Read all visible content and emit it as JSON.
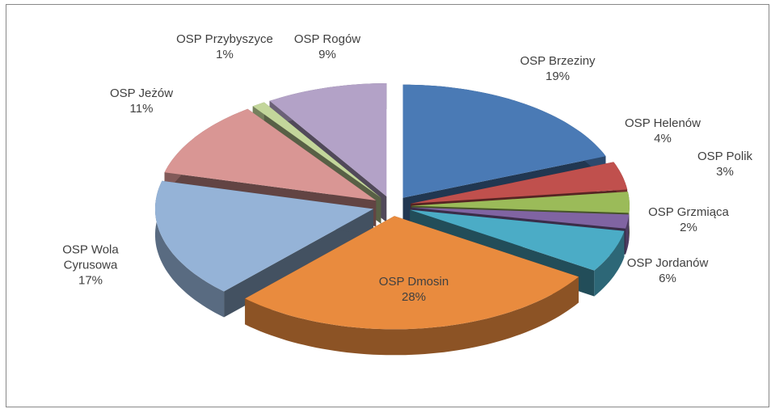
{
  "chart_data": {
    "type": "pie",
    "categories": [
      "OSP Brzeziny",
      "OSP Helenów",
      "OSP Polik",
      "OSP Grzmiąca",
      "OSP Jordanów",
      "OSP Dmosin",
      "OSP Wola Cyrusowa",
      "OSP Jeżów",
      "OSP Przybyszyce",
      "OSP Rogów"
    ],
    "values": [
      19,
      4,
      3,
      2,
      6,
      28,
      17,
      11,
      1,
      9
    ],
    "value_labels": [
      "19%",
      "4%",
      "3%",
      "2%",
      "6%",
      "28%",
      "17%",
      "11%",
      "1%",
      "9%"
    ],
    "colors": [
      "#4a7ab5",
      "#c0504d",
      "#9bbb59",
      "#8064a2",
      "#4bacc6",
      "#e98b3e",
      "#95b3d7",
      "#d99694",
      "#c3d69b",
      "#b3a2c7"
    ]
  }
}
